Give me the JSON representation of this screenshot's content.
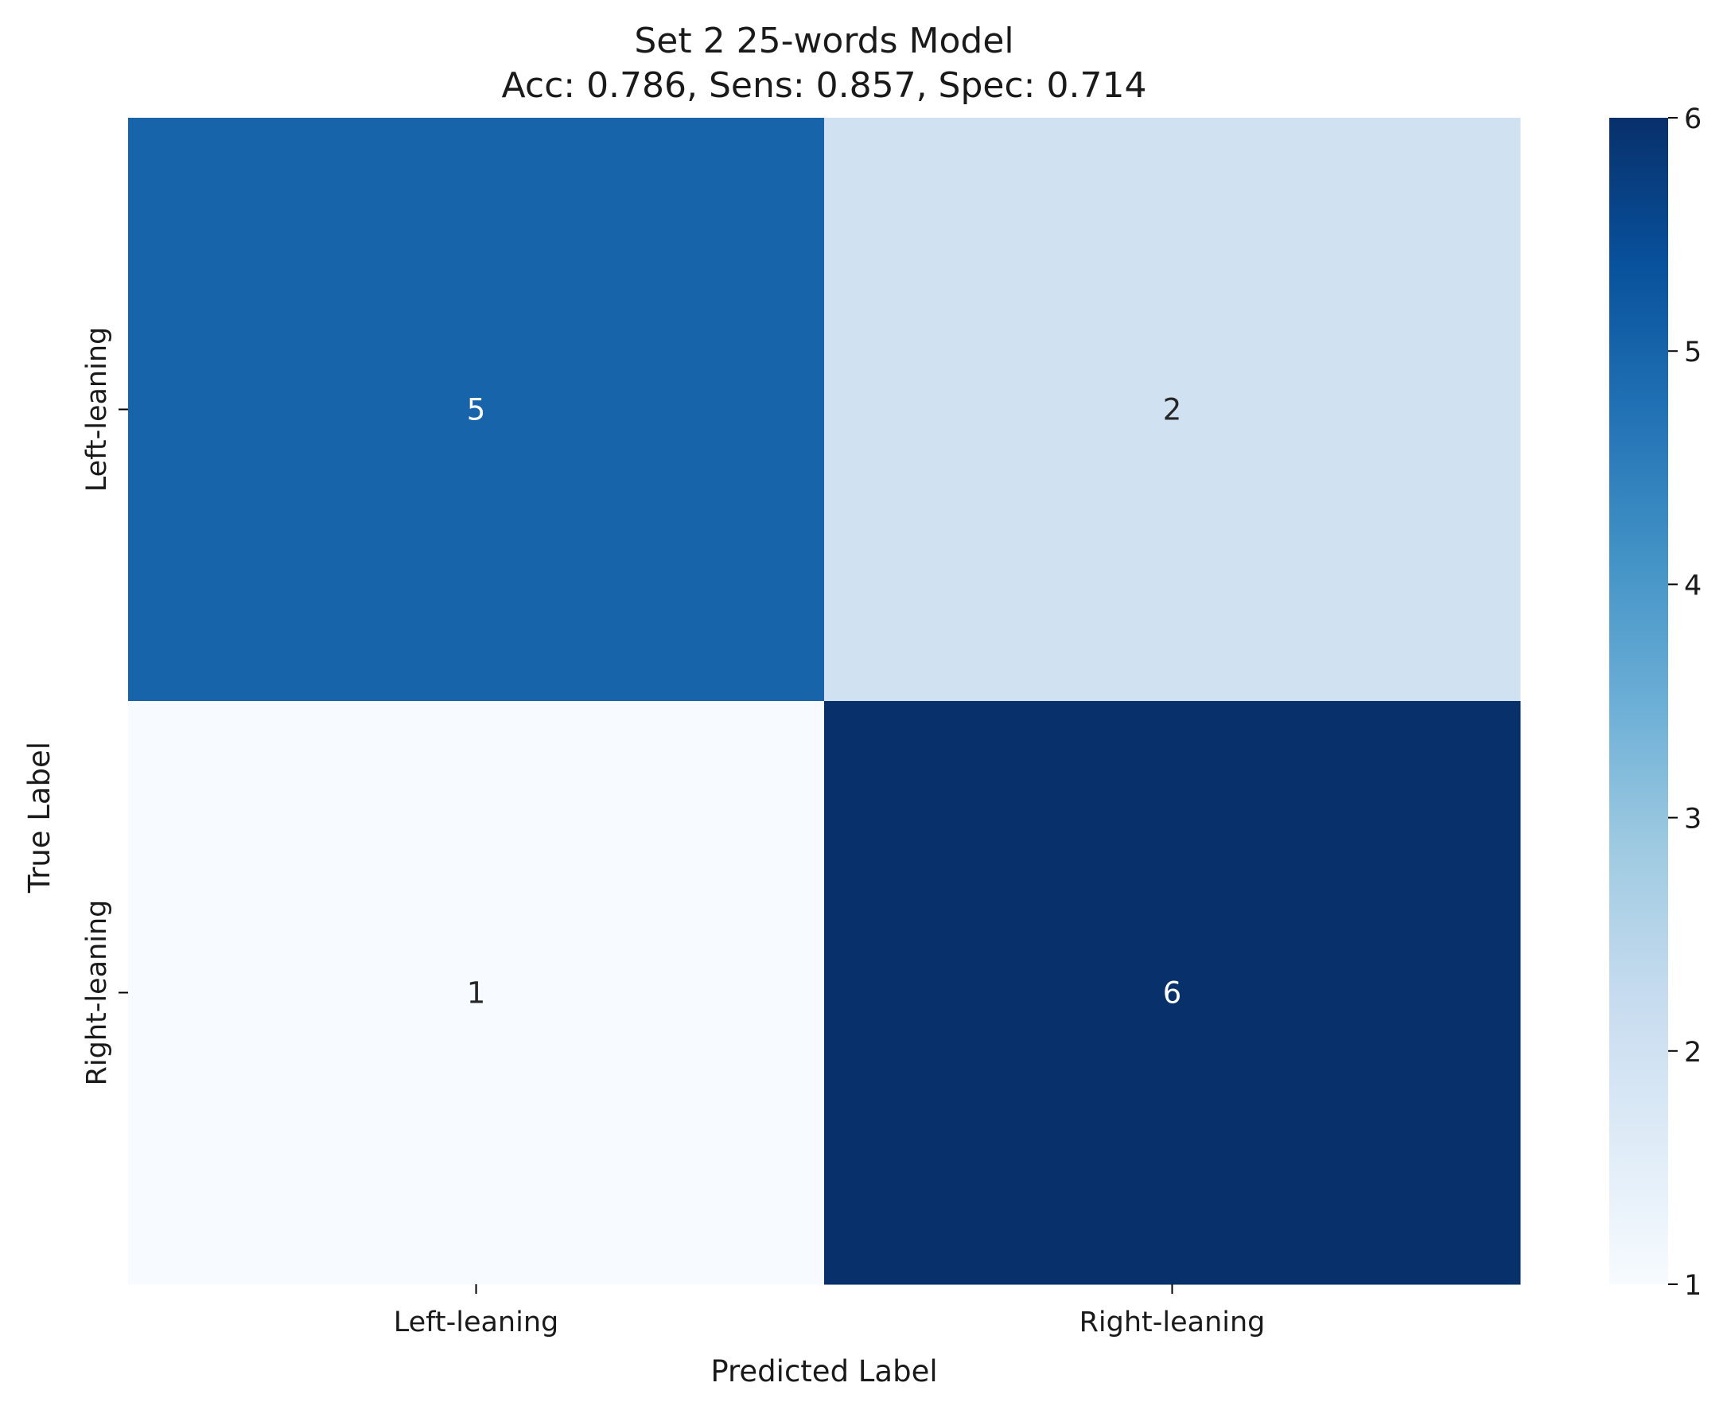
{
  "chart_data": {
    "type": "heatmap",
    "title": "Set 2 25-words Model",
    "subtitle": "Acc: 0.786, Sens: 0.857, Spec: 0.714",
    "xlabel": "Predicted Label",
    "ylabel": "True Label",
    "x_categories": [
      "Left-leaning",
      "Right-leaning"
    ],
    "y_categories": [
      "Left-leaning",
      "Right-leaning"
    ],
    "matrix": [
      [
        5,
        2
      ],
      [
        1,
        6
      ]
    ],
    "colorbar": {
      "min": 1,
      "max": 6,
      "ticks": [
        1,
        2,
        3,
        4,
        5,
        6
      ],
      "colormap": "Blues",
      "stops": [
        "#f7fbff",
        "#deebf7",
        "#c6dbef",
        "#9ecae1",
        "#6baed6",
        "#4292c6",
        "#2171b5",
        "#08519c",
        "#08306b"
      ]
    },
    "legend": "colorbar-right"
  }
}
